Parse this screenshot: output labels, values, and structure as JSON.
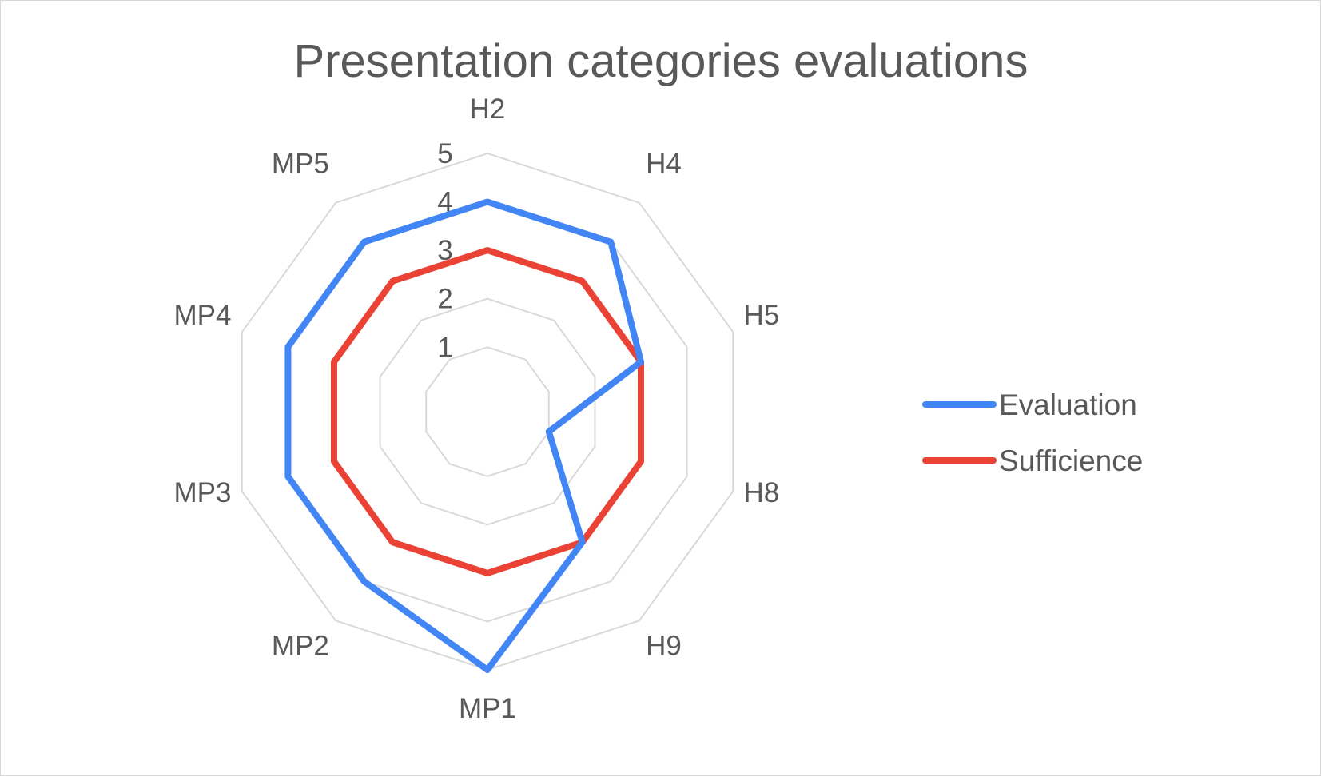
{
  "chart_data": {
    "type": "radar",
    "title": "Presentation categories evaluations",
    "categories": [
      "H2",
      "H4",
      "H5",
      "H8",
      "H9",
      "MP1",
      "MP2",
      "MP3",
      "MP4",
      "MP5"
    ],
    "series": [
      {
        "name": "Evaluation",
        "color": "#4285f4",
        "values": [
          4,
          4,
          3,
          1,
          3,
          5,
          4,
          4,
          4,
          4
        ]
      },
      {
        "name": "Sufficience",
        "color": "#ea4335",
        "values": [
          3,
          3,
          3,
          3,
          3,
          3,
          3,
          3,
          3,
          3
        ]
      }
    ],
    "rlim": [
      0,
      5
    ],
    "ticks": [
      "1",
      "2",
      "3",
      "4",
      "5"
    ],
    "grid": true,
    "grid_color": "#d9d9d9",
    "text_color": "#595959",
    "legend_position": "right"
  }
}
